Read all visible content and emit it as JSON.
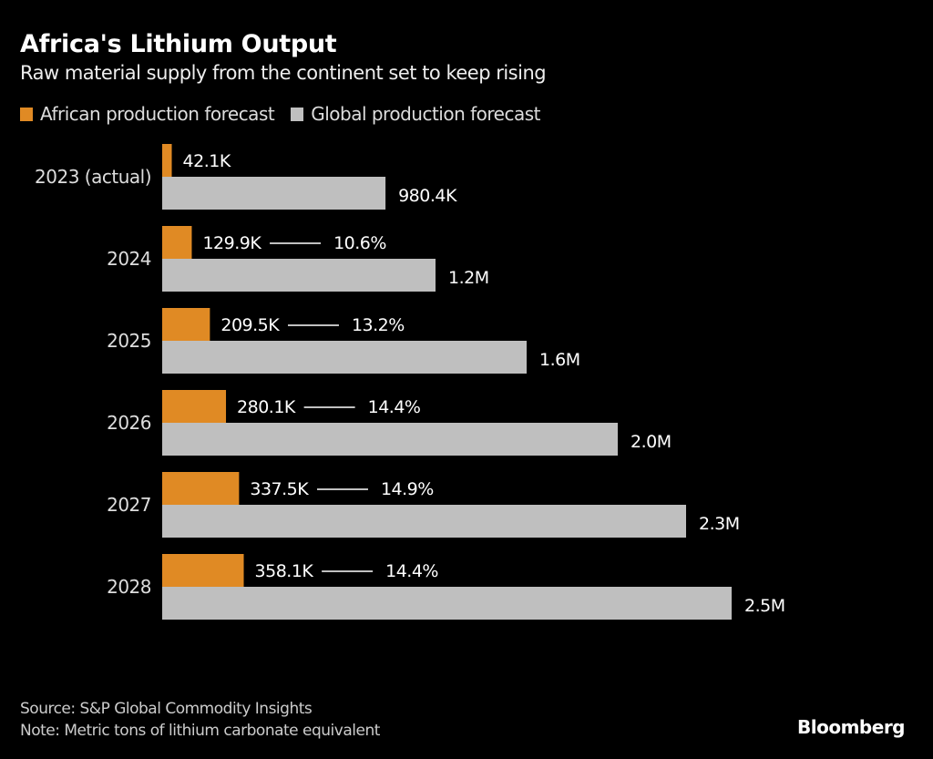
{
  "chart_data": {
    "type": "bar",
    "orientation": "horizontal",
    "title": "Africa's Lithium Output",
    "subtitle": "Raw material supply from the continent set to keep rising",
    "categories": [
      "2023 (actual)",
      "2024",
      "2025",
      "2026",
      "2027",
      "2028"
    ],
    "series": [
      {
        "name": "African production forecast",
        "color": "#E08A24",
        "values": [
          42.1,
          129.9,
          209.5,
          280.1,
          337.5,
          358.1
        ],
        "labels": [
          "42.1K",
          "129.9K",
          "209.5K",
          "280.1K",
          "337.5K",
          "358.1K"
        ]
      },
      {
        "name": "Global production forecast",
        "color": "#BFBFBF",
        "values": [
          980.4,
          1200,
          1600,
          2000,
          2300,
          2500
        ],
        "labels": [
          "980.4K",
          "1.2M",
          "1.6M",
          "2.0M",
          "2.3M",
          "2.5M"
        ]
      }
    ],
    "share_labels": [
      null,
      "10.6%",
      "13.2%",
      "14.4%",
      "14.9%",
      "14.4%"
    ],
    "unit": "thousand metric tons LCE",
    "xlim": [
      0,
      2500
    ],
    "grid": false,
    "legend_position": "top-left",
    "xlabel": "",
    "ylabel": ""
  },
  "legend": {
    "items": [
      {
        "label": "African production forecast",
        "color": "#E08A24"
      },
      {
        "label": "Global production forecast",
        "color": "#BFBFBF"
      }
    ]
  },
  "footer": {
    "source": "Source: S&P Global Commodity Insights",
    "note": "Note: Metric tons of lithium carbonate equivalent"
  },
  "brand": "Bloomberg"
}
